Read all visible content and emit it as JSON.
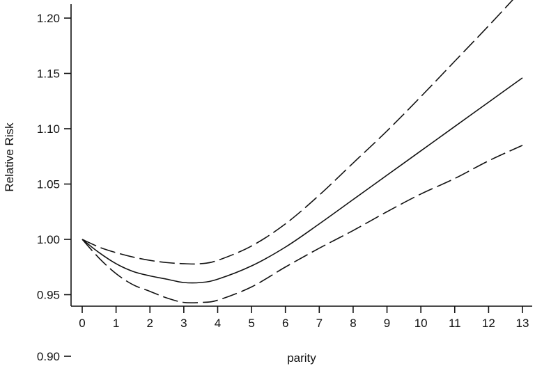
{
  "chart_data": {
    "type": "line",
    "title": "",
    "xlabel": "parity",
    "ylabel": "Relative Risk",
    "xlim": [
      0,
      13
    ],
    "ylim": [
      0.94,
      1.23
    ],
    "x_ticks": [
      "0",
      "1",
      "2",
      "3",
      "4",
      "5",
      "6",
      "7",
      "8",
      "9",
      "10",
      "11",
      "12",
      "13"
    ],
    "y_ticks": [
      {
        "value": 0.95,
        "label": "0.95"
      },
      {
        "value": 1.0,
        "label": "1.00"
      },
      {
        "value": 1.05,
        "label": "1.05"
      },
      {
        "value": 1.1,
        "label": "1.10"
      },
      {
        "value": 1.15,
        "label": "1.15"
      },
      {
        "value": 1.2,
        "label": "1.20"
      }
    ],
    "detached_y_tick": {
      "value": 0.9,
      "label": "0.90"
    },
    "grid": false,
    "legend": "none",
    "line_color": "#111111",
    "x": [
      0,
      0.5,
      1,
      1.5,
      2,
      2.5,
      3,
      3.5,
      4,
      5,
      6,
      7,
      8,
      9,
      10,
      11,
      12,
      13
    ],
    "series": [
      {
        "style": "solid",
        "values": [
          1.0,
          0.988,
          0.978,
          0.971,
          0.967,
          0.964,
          0.961,
          0.961,
          0.964,
          0.976,
          0.993,
          1.014,
          1.036,
          1.058,
          1.08,
          1.102,
          1.124,
          1.146
        ]
      },
      {
        "style": "dashed",
        "values": [
          1.0,
          0.993,
          0.988,
          0.984,
          0.981,
          0.979,
          0.978,
          0.978,
          0.981,
          0.994,
          1.014,
          1.04,
          1.069,
          1.098,
          1.129,
          1.161,
          1.193,
          1.226
        ]
      },
      {
        "style": "dashed",
        "values": [
          1.0,
          0.983,
          0.969,
          0.959,
          0.953,
          0.947,
          0.943,
          0.943,
          0.945,
          0.957,
          0.975,
          0.992,
          1.008,
          1.025,
          1.041,
          1.055,
          1.071,
          1.085
        ]
      }
    ]
  }
}
